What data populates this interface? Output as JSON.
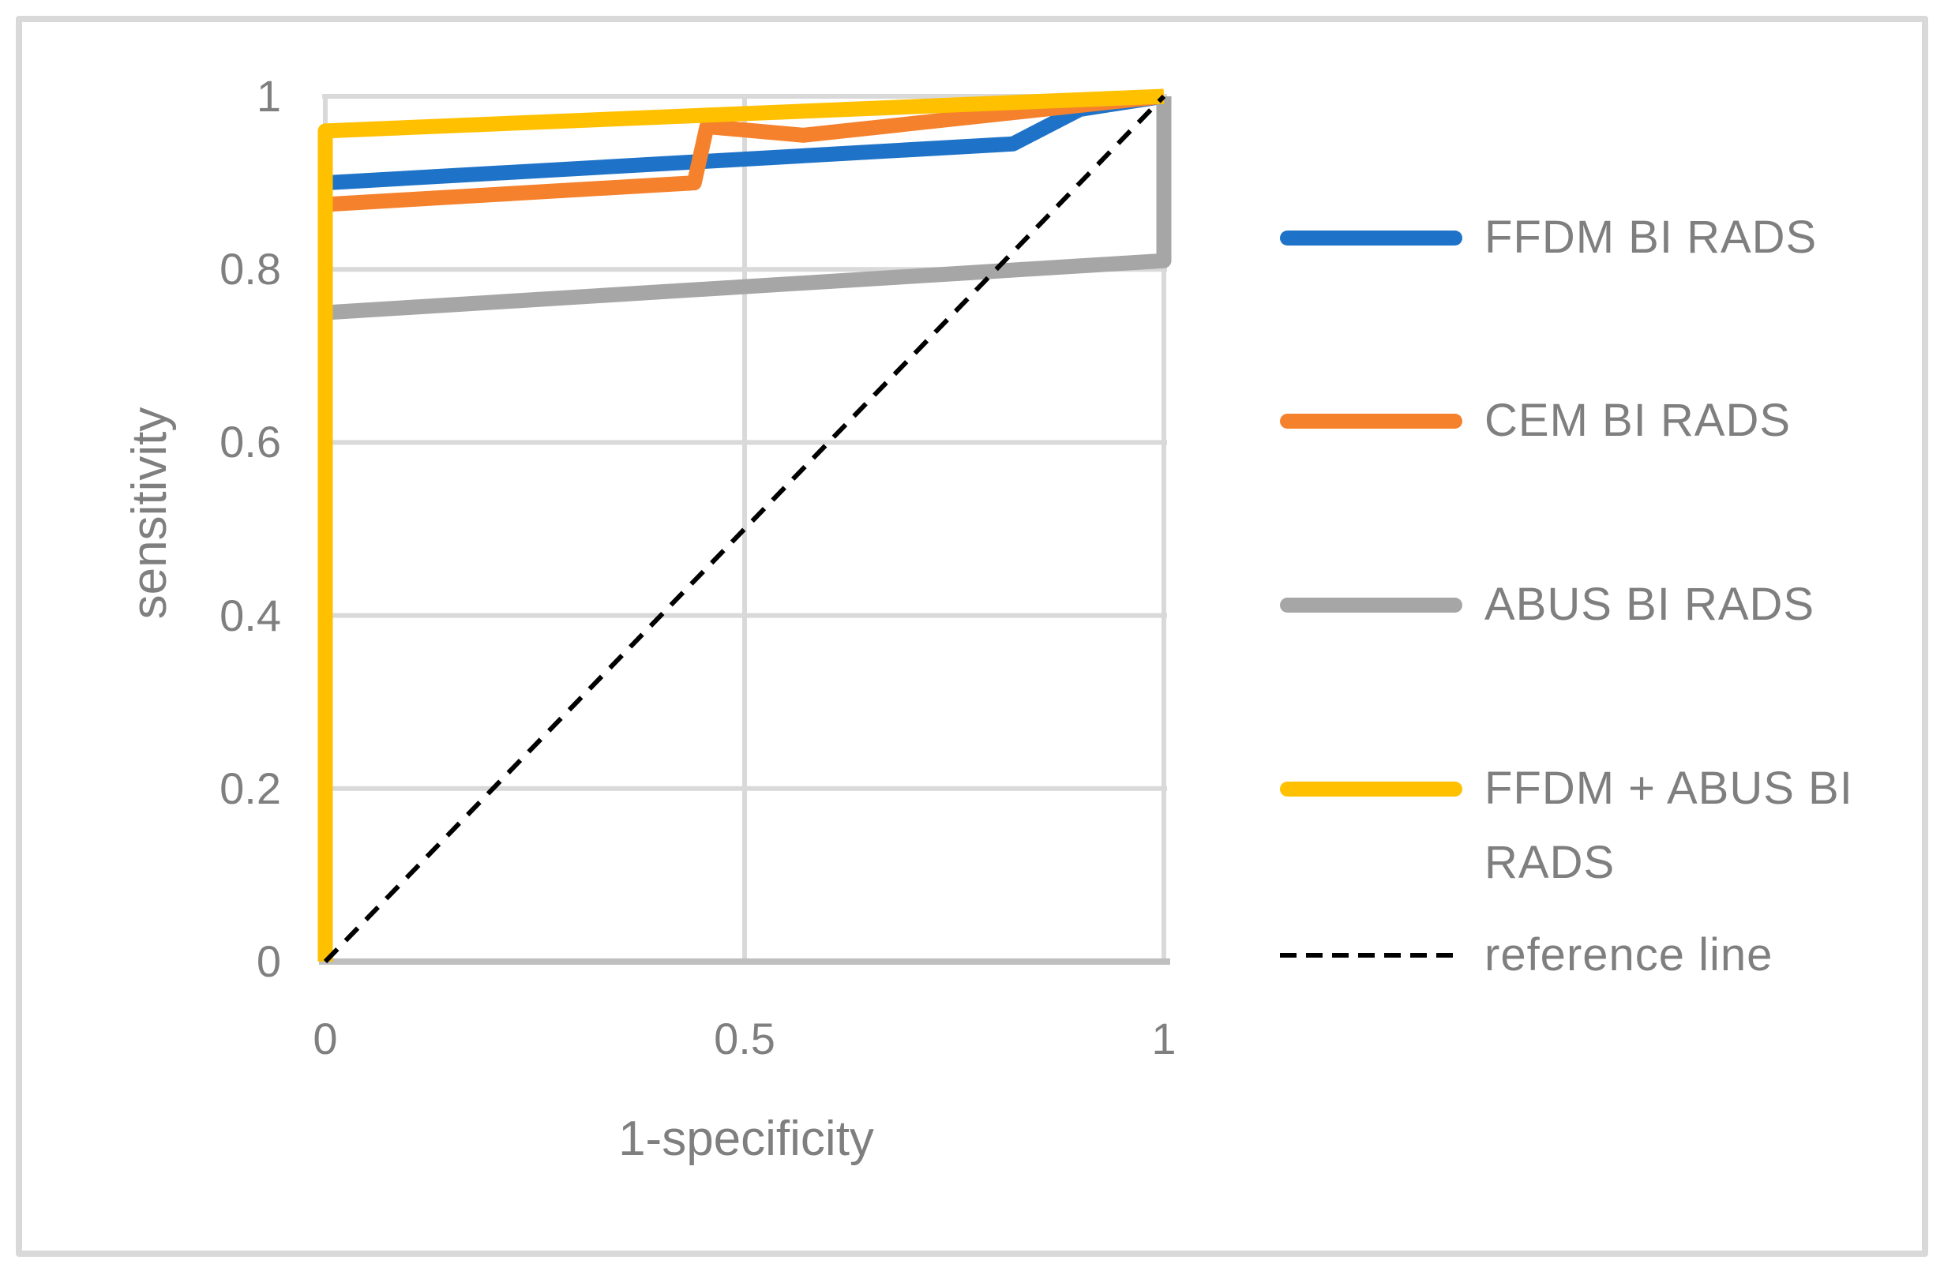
{
  "axes": {
    "x": {
      "title": "1-specificity",
      "ticks": [
        {
          "v": 0,
          "label": "0"
        },
        {
          "v": 0.5,
          "label": "0.5"
        },
        {
          "v": 1,
          "label": "1"
        }
      ]
    },
    "y": {
      "title": "sensitivity",
      "ticks": [
        {
          "v": 0,
          "label": "0"
        },
        {
          "v": 0.2,
          "label": "0.2"
        },
        {
          "v": 0.4,
          "label": "0.4"
        },
        {
          "v": 0.6,
          "label": "0.6"
        },
        {
          "v": 0.8,
          "label": "0.8"
        },
        {
          "v": 1,
          "label": "1"
        }
      ]
    }
  },
  "legend": [
    {
      "label": "FFDM BI RADS",
      "color": "#1E73C8",
      "style": "line"
    },
    {
      "label": "CEM BI RADS",
      "color": "#F6812C",
      "style": "line"
    },
    {
      "label": "ABUS BI RADS",
      "color": "#A6A6A6",
      "style": "line"
    },
    {
      "label": "FFDM + ABUS BI\nRADS",
      "color": "#FFC000",
      "style": "line"
    },
    {
      "label": "reference line",
      "color": "#000000",
      "style": "dashed"
    }
  ],
  "colors": {
    "gridline": "#D9D9D9",
    "x_axis_line": "#BFBFBF",
    "text": "#7F7F7F",
    "outer_border": "#D9D9D9"
  },
  "chart_data": {
    "type": "line",
    "title": "",
    "xlabel": "1-specificity",
    "ylabel": "sensitivity",
    "xlim": [
      0,
      1
    ],
    "ylim": [
      0,
      1
    ],
    "grid": true,
    "legend_position": "right",
    "series": [
      {
        "name": "FFDM BI RADS",
        "color": "#1E73C8",
        "style": "solid",
        "points": [
          [
            0,
            0
          ],
          [
            0,
            0.9
          ],
          [
            0.82,
            0.945
          ],
          [
            0.9,
            0.985
          ],
          [
            1,
            1
          ]
        ]
      },
      {
        "name": "CEM BI RADS",
        "color": "#F6812C",
        "style": "solid",
        "points": [
          [
            0,
            0
          ],
          [
            0,
            0.875
          ],
          [
            0.44,
            0.9
          ],
          [
            0.455,
            0.965
          ],
          [
            0.57,
            0.955
          ],
          [
            1,
            1
          ]
        ]
      },
      {
        "name": "ABUS BI RADS",
        "color": "#A6A6A6",
        "style": "solid",
        "points": [
          [
            0,
            0
          ],
          [
            0,
            0.75
          ],
          [
            1,
            0.81
          ],
          [
            1,
            1
          ]
        ]
      },
      {
        "name": "FFDM + ABUS BI RADS",
        "color": "#FFC000",
        "style": "solid",
        "points": [
          [
            0,
            0
          ],
          [
            0,
            0.96
          ],
          [
            1,
            1
          ]
        ]
      },
      {
        "name": "reference line",
        "color": "#000000",
        "style": "dashed",
        "points": [
          [
            0,
            0
          ],
          [
            1,
            1
          ]
        ]
      }
    ]
  }
}
